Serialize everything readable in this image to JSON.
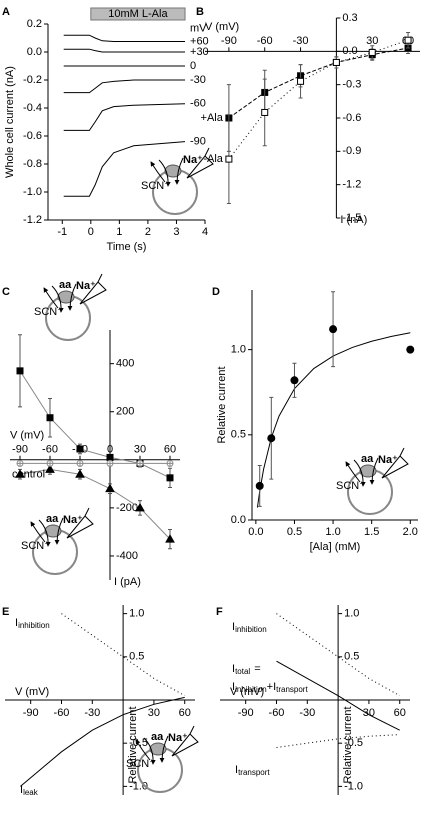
{
  "chart_data": [
    {
      "type": "line",
      "panel": "A",
      "xlabel": "Time (s)",
      "ylabel": "Whole cell current (nA)",
      "xlim": [
        -1.5,
        4
      ],
      "xticks": [
        -1,
        0,
        1,
        2,
        3,
        4
      ],
      "ylim": [
        -1.2,
        0.2
      ],
      "yticks": [
        -1.2,
        {
          "value": -1,
          "label": "-1.0"
        },
        -0.8,
        -0.6,
        -0.4,
        -0.2,
        {
          "value": 0,
          "label": "0.0"
        },
        0.2
      ],
      "stimulus": {
        "label": "10mM L-Ala",
        "x": [
          0,
          3.3
        ]
      },
      "legend_title": "mV",
      "x": [
        -0.95,
        -0.05,
        0.15,
        0.4,
        0.8,
        1.5,
        3.3
      ],
      "series": [
        {
          "name": "+60",
          "color": "#000",
          "values": [
            0.12,
            0.12,
            0.1,
            0.08,
            0.075,
            0.075,
            0.075
          ]
        },
        {
          "name": "+30",
          "color": "#000",
          "values": [
            0.02,
            0.02,
            0.01,
            0.0,
            0.0,
            0.0,
            0.0
          ]
        },
        {
          "name": "0",
          "color": "#000",
          "values": [
            -0.1,
            -0.1,
            -0.1,
            -0.1,
            -0.1,
            -0.1,
            -0.1
          ]
        },
        {
          "name": "-30",
          "color": "#000",
          "values": [
            -0.29,
            -0.29,
            -0.26,
            -0.22,
            -0.21,
            -0.2,
            -0.2
          ]
        },
        {
          "name": "-60",
          "color": "#000",
          "values": [
            -0.56,
            -0.56,
            -0.5,
            -0.42,
            -0.39,
            -0.38,
            -0.37
          ]
        },
        {
          "name": "-90",
          "color": "#000",
          "values": [
            -1.03,
            -1.03,
            -0.95,
            -0.82,
            -0.72,
            -0.67,
            -0.64
          ]
        }
      ],
      "insets": [
        {
          "anion": "SCN⁻",
          "cation": "Na⁺"
        }
      ]
    },
    {
      "type": "line",
      "panel": "B",
      "xlabel": "V (mV)",
      "ylabel": "I (nA)",
      "xlim": [
        -110,
        70
      ],
      "xticks": [
        -90,
        -60,
        -30,
        30,
        60
      ],
      "ylim": [
        -1.5,
        0.3
      ],
      "yticks": [
        0.3,
        {
          "value": 0,
          "label": "0.0"
        },
        -0.3,
        -0.6,
        -0.9,
        -1.2,
        -1.5
      ],
      "x": [
        -90,
        -60,
        -30,
        0,
        30,
        60
      ],
      "series": [
        {
          "name": "+Ala",
          "color": "#000",
          "marker": "square",
          "filled": true,
          "dash": true,
          "values": [
            -0.6,
            -0.37,
            -0.22,
            -0.1,
            -0.03,
            0.03
          ],
          "errors": [
            0.3,
            0.2,
            0.1,
            0.05,
            0.05,
            0.05
          ]
        },
        {
          "name": "-Ala",
          "color": "#000",
          "marker": "square",
          "filled": false,
          "dotted": true,
          "values": [
            -0.97,
            -0.55,
            -0.27,
            -0.1,
            -0.01,
            0.1
          ],
          "errors": [
            0.4,
            0.3,
            0.15,
            0.05,
            0.06,
            0.07
          ]
        }
      ]
    },
    {
      "type": "line",
      "panel": "C",
      "xlabel": "V (mV)",
      "ylabel": "I (pA)",
      "xlim": [
        -100,
        70
      ],
      "xticks": [
        -90,
        -60,
        -30,
        0,
        30,
        60
      ],
      "ylim": [
        -500,
        540
      ],
      "yticks": [
        400,
        200,
        -200,
        -400
      ],
      "x": [
        -90,
        -60,
        -30,
        0,
        30,
        60
      ],
      "series": [
        {
          "color": "#000",
          "line_color": "#888",
          "marker": "square",
          "filled": true,
          "values": [
            370,
            175,
            45,
            10,
            -15,
            -75
          ],
          "errors": [
            150,
            80,
            20,
            10,
            15,
            40
          ]
        },
        {
          "color": "#000",
          "line_color": "#888",
          "marker": "triangle",
          "filled": true,
          "values": [
            -60,
            -40,
            -60,
            -120,
            -200,
            -330
          ],
          "errors": [
            20,
            20,
            20,
            20,
            30,
            40
          ]
        },
        {
          "name": "control",
          "color": "#888",
          "line_color": "#888",
          "marker": "circle-plus",
          "filled": false,
          "values": [
            -15,
            -15,
            -15,
            -15,
            -15,
            -15
          ],
          "errors": [
            10,
            10,
            10,
            10,
            10,
            10
          ]
        }
      ],
      "insets": [
        {
          "anion": "SCN⁻",
          "cation": "Na⁺",
          "substrate": "aa"
        },
        {
          "anion": "SCN⁻",
          "cation": "Na⁺",
          "substrate": "aa"
        }
      ]
    },
    {
      "type": "scatter",
      "panel": "D",
      "xlabel": "[Ala] (mM)",
      "ylabel": "Relative current",
      "xlim": [
        -0.05,
        2.1
      ],
      "xticks": [
        {
          "value": 0,
          "label": "0.0"
        },
        0.5,
        {
          "value": 1,
          "label": "1.0"
        },
        1.5,
        {
          "value": 2,
          "label": "2.0"
        }
      ],
      "ylim": [
        0,
        1.35
      ],
      "yticks": [
        {
          "value": 0,
          "label": "0.0"
        },
        0.5,
        {
          "value": 1,
          "label": "1.0"
        }
      ],
      "x": [
        0.05,
        0.2,
        0.5,
        1,
        2
      ],
      "values": [
        0.2,
        0.48,
        0.82,
        1.12,
        1.0
      ],
      "errors": [
        0.12,
        0.24,
        0.1,
        0.22,
        null
      ],
      "color": "#000",
      "fit": {
        "x": [
          0.02,
          0.05,
          0.1,
          0.2,
          0.3,
          0.5,
          0.75,
          1,
          1.25,
          1.5,
          1.75,
          2
        ],
        "values": [
          0.073,
          0.168,
          0.298,
          0.483,
          0.61,
          0.771,
          0.889,
          0.962,
          1.013,
          1.049,
          1.077,
          1.099
        ]
      },
      "insets": [
        {
          "anion": "SCN⁻",
          "cation": "Na⁺",
          "substrate": "aa"
        }
      ]
    },
    {
      "type": "line",
      "panel": "E",
      "xlabel": "V (mV)",
      "ylabel": "Relative current",
      "xlim": [
        -115,
        70
      ],
      "xticks": [
        -90,
        -60,
        -30,
        30,
        60
      ],
      "ylim": [
        -1.1,
        1.1
      ],
      "yticks": [
        {
          "value": 1,
          "label": "1.0"
        },
        0.5,
        -0.5,
        {
          "value": -1,
          "label": "-1.0"
        }
      ],
      "x": [
        -100,
        -60,
        -30,
        0,
        30,
        60
      ],
      "series": [
        {
          "name": "I",
          "subscript": "inhibition",
          "color": "#000",
          "dotted": true,
          "values": [
            null,
            1.0,
            0.75,
            0.5,
            0.25,
            0.05
          ]
        },
        {
          "name": "I",
          "subscript": "leak",
          "color": "#000",
          "values": [
            -1.0,
            -0.6,
            -0.35,
            -0.17,
            -0.05,
            0.03
          ]
        }
      ],
      "insets": [
        {
          "anion": "SCN⁻",
          "cation": "Na⁺",
          "substrate": "aa"
        }
      ]
    },
    {
      "type": "line",
      "panel": "F",
      "xlabel": "V (mV)",
      "ylabel": "Relative current",
      "xlim": [
        -115,
        70
      ],
      "xticks": [
        -90,
        -60,
        -30,
        30,
        60
      ],
      "ylim": [
        -1.1,
        1.1
      ],
      "yticks": [
        {
          "value": 1,
          "label": "1.0"
        },
        0.5,
        -0.5,
        {
          "value": -1,
          "label": "-1.0"
        }
      ],
      "x": [
        -60,
        -30,
        0,
        30,
        60
      ],
      "series": [
        {
          "name": "I",
          "subscript": "inhibition",
          "color": "#000",
          "dotted": true,
          "values": [
            1.0,
            0.75,
            0.5,
            0.25,
            0.05
          ]
        },
        {
          "name": "I",
          "subscript": "total",
          "suffix": "=",
          "color": "#000",
          "values": [
            0.45,
            0.25,
            0.05,
            -0.17,
            -0.35
          ]
        },
        {
          "name": "I",
          "subscript": "transport",
          "color": "#000",
          "dotted": true,
          "values": [
            -0.55,
            -0.5,
            -0.45,
            -0.42,
            -0.4
          ]
        }
      ],
      "equation": [
        {
          "text": "I"
        },
        {
          "text": "inhibition",
          "sub": true
        },
        {
          "text": "+I"
        },
        {
          "text": "transport",
          "sub": true
        }
      ]
    }
  ]
}
